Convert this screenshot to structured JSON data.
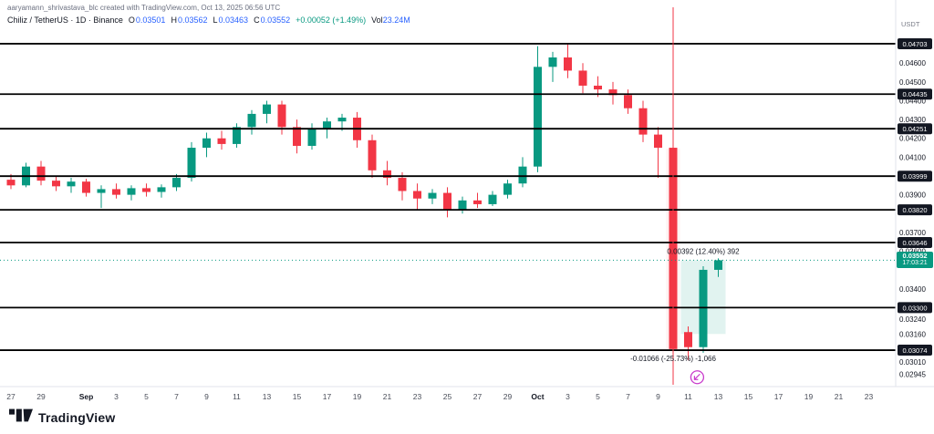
{
  "page": {
    "attribution": "aaryamann_shrivastava_blc created with TradingView.com, Oct 13, 2025 06:56 UTC",
    "footer_logo_text": "TradingView"
  },
  "symbol_bar": {
    "title": "Chiliz / TetherUS · 1D · Binance",
    "ohlc": [
      {
        "label": "O",
        "value": "0.03501"
      },
      {
        "label": "H",
        "value": "0.03562"
      },
      {
        "label": "L",
        "value": "0.03463"
      },
      {
        "label": "C",
        "value": "0.03552"
      }
    ],
    "change": "+0.00052 (+1.49%)",
    "volume_label": "Vol",
    "volume_value": "23.24M"
  },
  "price_axis": {
    "currency_label": "USDT",
    "ticks": [
      0.046,
      0.045,
      0.044,
      0.043,
      0.042,
      0.041,
      0.039,
      0.037,
      0.036,
      0.034,
      0.0324,
      0.0316,
      0.0301,
      0.02945
    ],
    "level_badges": [
      0.04703,
      0.04435,
      0.04251,
      0.03999,
      0.0382,
      0.03646,
      0.033,
      0.03074
    ],
    "current": {
      "price": "0.03552",
      "countdown": "17:03:21"
    }
  },
  "colors": {
    "up": "#089981",
    "down": "#F23645",
    "level_line": "#000000",
    "accent_blue": "#2962FF",
    "badge_dark_bg": "#131722",
    "current_badge_bg": "#089981",
    "axis_text": "#131722",
    "separator": "#E0E3EB",
    "sticker": "#C93CCC"
  },
  "chart_data": {
    "type": "candlestick",
    "title": "Chiliz / TetherUS 1D Binance",
    "y_range": {
      "top_price": 0.0479,
      "bottom_price": 0.0289
    },
    "levels": [
      0.04703,
      0.04435,
      0.04251,
      0.03999,
      0.0382,
      0.03646,
      0.033,
      0.03074
    ],
    "current_price": 0.03552,
    "x_axis": {
      "labels": [
        {
          "i": 0,
          "t": "27"
        },
        {
          "i": 2,
          "t": "29"
        },
        {
          "i": 5,
          "t": "Sep",
          "m": true
        },
        {
          "i": 7,
          "t": "3"
        },
        {
          "i": 9,
          "t": "5"
        },
        {
          "i": 11,
          "t": "7"
        },
        {
          "i": 13,
          "t": "9"
        },
        {
          "i": 15,
          "t": "11"
        },
        {
          "i": 17,
          "t": "13"
        },
        {
          "i": 19,
          "t": "15"
        },
        {
          "i": 21,
          "t": "17"
        },
        {
          "i": 23,
          "t": "19"
        },
        {
          "i": 25,
          "t": "21"
        },
        {
          "i": 27,
          "t": "23"
        },
        {
          "i": 29,
          "t": "25"
        },
        {
          "i": 31,
          "t": "27"
        },
        {
          "i": 33,
          "t": "29"
        },
        {
          "i": 35,
          "t": "Oct",
          "m": true
        },
        {
          "i": 37,
          "t": "3"
        },
        {
          "i": 39,
          "t": "5"
        },
        {
          "i": 41,
          "t": "7"
        },
        {
          "i": 43,
          "t": "9"
        },
        {
          "i": 45,
          "t": "11"
        },
        {
          "i": 47,
          "t": "13"
        },
        {
          "i": 49,
          "t": "15"
        },
        {
          "i": 51,
          "t": "17"
        },
        {
          "i": 53,
          "t": "19"
        },
        {
          "i": 55,
          "t": "21"
        },
        {
          "i": 57,
          "t": "23"
        }
      ]
    },
    "candles": [
      [
        "Aug 27",
        0.0398,
        0.0401,
        0.0393,
        0.0395
      ],
      [
        "Aug 28",
        0.0395,
        0.0407,
        0.0394,
        0.0405
      ],
      [
        "Aug 29",
        0.0405,
        0.0408,
        0.0395,
        0.03975
      ],
      [
        "Aug 30",
        0.03975,
        0.04,
        0.0392,
        0.03945
      ],
      [
        "Aug 31",
        0.03945,
        0.0399,
        0.0391,
        0.0397
      ],
      [
        "Sep 1",
        0.0397,
        0.03985,
        0.0389,
        0.0391
      ],
      [
        "Sep 2",
        0.0391,
        0.0395,
        0.0383,
        0.0393
      ],
      [
        "Sep 3",
        0.0393,
        0.0396,
        0.0388,
        0.039
      ],
      [
        "Sep 4",
        0.039,
        0.0395,
        0.0387,
        0.03935
      ],
      [
        "Sep 5",
        0.03935,
        0.0396,
        0.0389,
        0.03915
      ],
      [
        "Sep 6",
        0.03915,
        0.03955,
        0.03885,
        0.0394
      ],
      [
        "Sep 7",
        0.0394,
        0.0401,
        0.0392,
        0.0399
      ],
      [
        "Sep 8",
        0.0399,
        0.0418,
        0.0397,
        0.0415
      ],
      [
        "Sep 9",
        0.0415,
        0.0423,
        0.041,
        0.042
      ],
      [
        "Sep 10",
        0.042,
        0.0424,
        0.0414,
        0.0417
      ],
      [
        "Sep 11",
        0.0417,
        0.0428,
        0.0415,
        0.0426
      ],
      [
        "Sep 12",
        0.0426,
        0.0435,
        0.0422,
        0.0433
      ],
      [
        "Sep 13",
        0.0433,
        0.044,
        0.0428,
        0.0438
      ],
      [
        "Sep 14",
        0.0438,
        0.044,
        0.0422,
        0.0426
      ],
      [
        "Sep 15",
        0.0426,
        0.043,
        0.0412,
        0.0416
      ],
      [
        "Sep 16",
        0.0416,
        0.0428,
        0.0414,
        0.0425
      ],
      [
        "Sep 17",
        0.0425,
        0.0431,
        0.042,
        0.0429
      ],
      [
        "Sep 18",
        0.0429,
        0.0433,
        0.0424,
        0.0431
      ],
      [
        "Sep 19",
        0.0431,
        0.0434,
        0.0415,
        0.0419
      ],
      [
        "Sep 20",
        0.0419,
        0.0422,
        0.0399,
        0.0403
      ],
      [
        "Sep 21",
        0.0403,
        0.0408,
        0.0395,
        0.0399
      ],
      [
        "Sep 22",
        0.0399,
        0.0402,
        0.0387,
        0.0392
      ],
      [
        "Sep 23",
        0.0392,
        0.0396,
        0.0382,
        0.0388
      ],
      [
        "Sep 24",
        0.0388,
        0.0393,
        0.0385,
        0.0391
      ],
      [
        "Sep 25",
        0.0391,
        0.0394,
        0.0378,
        0.0382
      ],
      [
        "Sep 26",
        0.0382,
        0.0389,
        0.038,
        0.0387
      ],
      [
        "Sep 27",
        0.0387,
        0.0391,
        0.0383,
        0.0385
      ],
      [
        "Sep 28",
        0.0385,
        0.0392,
        0.0384,
        0.039
      ],
      [
        "Sep 29",
        0.039,
        0.0398,
        0.0388,
        0.0396
      ],
      [
        "Sep 30",
        0.0396,
        0.041,
        0.0394,
        0.0405
      ],
      [
        "Oct 1",
        0.0405,
        0.0469,
        0.0402,
        0.0458
      ],
      [
        "Oct 2",
        0.0458,
        0.0466,
        0.045,
        0.0463
      ],
      [
        "Oct 3",
        0.0463,
        0.047,
        0.0452,
        0.0456
      ],
      [
        "Oct 4",
        0.0456,
        0.046,
        0.0444,
        0.0448
      ],
      [
        "Oct 5",
        0.0448,
        0.0453,
        0.0442,
        0.0446
      ],
      [
        "Oct 6",
        0.0446,
        0.045,
        0.0438,
        0.0443
      ],
      [
        "Oct 7",
        0.0443,
        0.0446,
        0.0433,
        0.0436
      ],
      [
        "Oct 8",
        0.0436,
        0.044,
        0.0418,
        0.0422
      ],
      [
        "Oct 9",
        0.0422,
        0.0426,
        0.0399,
        0.0415
      ],
      [
        "Oct 10",
        0.0415,
        0.0417,
        0.0295,
        0.0308
      ],
      [
        "Oct 11",
        0.0317,
        0.032,
        0.0302,
        0.0309
      ],
      [
        "Oct 12",
        0.0309,
        0.0352,
        0.0306,
        0.03501
      ],
      [
        "Oct 13",
        0.03501,
        0.03562,
        0.03463,
        0.03552
      ]
    ],
    "annotations": {
      "crash_vline_idx": 44,
      "measure_up": {
        "from_idx": 45,
        "to_idx": 47,
        "price_from": 0.0316,
        "price_to": 0.03552,
        "label": "0.00392 (12.40%) 392"
      },
      "measure_down": {
        "idx": 44,
        "price_from": 0.04144,
        "price_to": 0.03078,
        "label": "-0.01066 (-25.73%) -1,066"
      },
      "sticker_icon": {
        "idx": 45.6,
        "price": 0.0293,
        "name": "circled-arrow-sticker-icon"
      }
    }
  }
}
